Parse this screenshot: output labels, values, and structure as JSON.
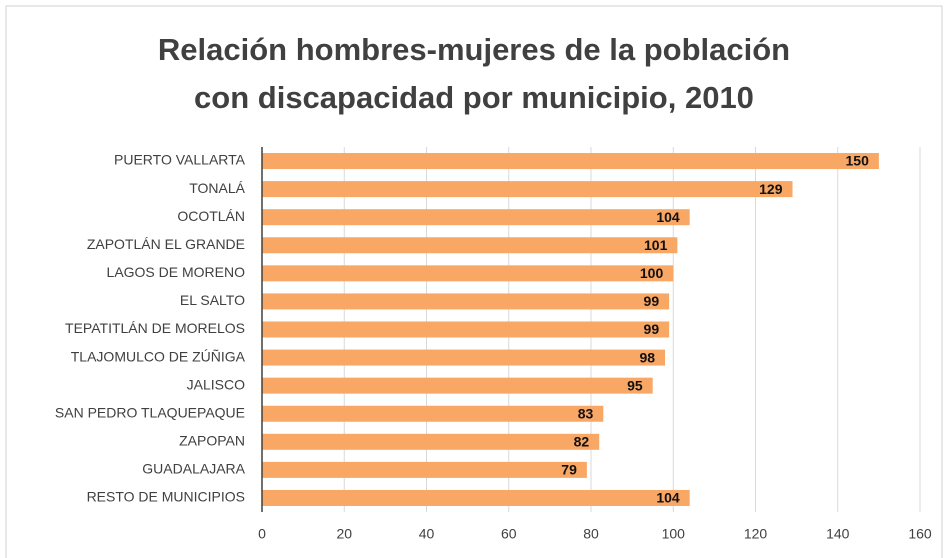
{
  "chart_data": {
    "type": "bar",
    "orientation": "horizontal",
    "title": [
      "Relación hombres-mujeres de la población",
      "con discapacidad por municipio, 2010"
    ],
    "categories": [
      "PUERTO VALLARTA",
      "TONALÁ",
      "OCOTLÁN",
      "ZAPOTLÁN EL GRANDE",
      "LAGOS DE MORENO",
      "EL SALTO",
      "TEPATITLÁN DE MORELOS",
      "TLAJOMULCO DE ZÚÑIGA",
      "JALISCO",
      "SAN PEDRO TLAQUEPAQUE",
      "ZAPOPAN",
      "GUADALAJARA",
      "RESTO DE MUNICIPIOS"
    ],
    "values": [
      150,
      129,
      104,
      101,
      100,
      99,
      99,
      98,
      95,
      83,
      82,
      79,
      104
    ],
    "color": "#f9a765",
    "xlim": [
      0,
      160
    ],
    "xticks": [
      0,
      20,
      40,
      60,
      80,
      100,
      120,
      140,
      160
    ],
    "grid": true
  }
}
